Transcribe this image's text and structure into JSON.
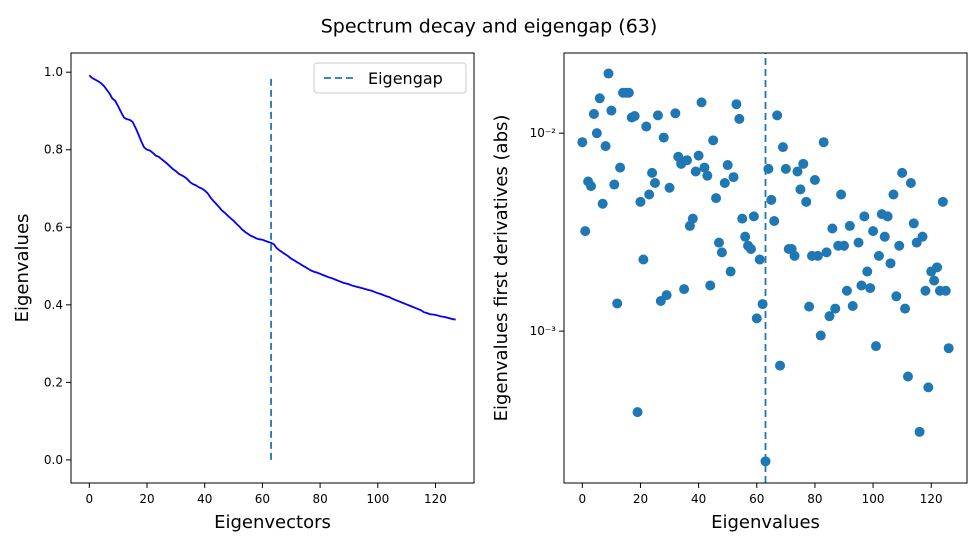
{
  "title": "Spectrum decay and eigengap (63)",
  "chart_data": [
    {
      "type": "line",
      "xlabel": "Eigenvectors",
      "ylabel": "Eigenvalues",
      "color": "#0000ff",
      "values": [
        0.992,
        0.985,
        0.981,
        0.977,
        0.972,
        0.965,
        0.955,
        0.945,
        0.932,
        0.926,
        0.912,
        0.897,
        0.883,
        0.879,
        0.877,
        0.872,
        0.857,
        0.84,
        0.822,
        0.806,
        0.8,
        0.798,
        0.792,
        0.785,
        0.782,
        0.776,
        0.77,
        0.764,
        0.757,
        0.75,
        0.745,
        0.738,
        0.734,
        0.73,
        0.724,
        0.716,
        0.711,
        0.708,
        0.703,
        0.7,
        0.695,
        0.688,
        0.677,
        0.668,
        0.66,
        0.652,
        0.643,
        0.637,
        0.63,
        0.623,
        0.617,
        0.609,
        0.602,
        0.594,
        0.588,
        0.583,
        0.578,
        0.575,
        0.571,
        0.569,
        0.568,
        0.565,
        0.562,
        0.56,
        0.556,
        0.546,
        0.54,
        0.535,
        0.53,
        0.525,
        0.519,
        0.515,
        0.51,
        0.506,
        0.501,
        0.497,
        0.492,
        0.488,
        0.485,
        0.483,
        0.48,
        0.477,
        0.474,
        0.471,
        0.469,
        0.466,
        0.463,
        0.46,
        0.457,
        0.455,
        0.453,
        0.45,
        0.448,
        0.446,
        0.444,
        0.442,
        0.44,
        0.438,
        0.436,
        0.433,
        0.43,
        0.428,
        0.425,
        0.422,
        0.42,
        0.416,
        0.413,
        0.41,
        0.407,
        0.404,
        0.401,
        0.398,
        0.395,
        0.392,
        0.389,
        0.386,
        0.381,
        0.379,
        0.376,
        0.375,
        0.374,
        0.372,
        0.37,
        0.369,
        0.367,
        0.365,
        0.363,
        0.362
      ],
      "vline": {
        "name": "Eigengap",
        "x": 63,
        "ymin": 0,
        "ymax": 0.992,
        "color": "#1f77b4"
      },
      "xlim": [
        -6.35,
        133.35
      ],
      "xticks": [
        0,
        20,
        40,
        60,
        80,
        100,
        120
      ],
      "ylim": [
        -0.0595,
        1.0495
      ],
      "yticks": [
        {
          "value": 0,
          "label": "0.0"
        },
        0.2,
        0.4,
        0.6,
        0.8,
        {
          "value": 1,
          "label": "1.0"
        }
      ],
      "legend": "upper right"
    },
    {
      "type": "scatter",
      "xlabel": "Eigenvalues",
      "ylabel": "Eigenvalues first derivatives (abs)",
      "color": "#1f77b4",
      "log_y": true,
      "x": [
        0,
        1,
        2,
        3,
        4,
        5,
        6,
        7,
        8,
        9,
        10,
        11,
        12,
        13,
        14,
        15,
        16,
        17,
        18,
        19,
        20,
        21,
        22,
        23,
        24,
        25,
        26,
        27,
        28,
        29,
        30,
        32,
        33,
        34,
        35,
        36,
        37,
        38,
        39,
        40,
        41,
        42,
        43,
        44,
        45,
        46,
        47,
        48,
        49,
        50,
        51,
        52,
        53,
        54,
        55,
        56,
        57,
        58,
        59,
        60,
        61,
        62,
        63,
        64,
        65,
        66,
        67,
        68,
        69,
        70,
        71,
        72,
        73,
        74,
        75,
        76,
        77,
        78,
        79,
        80,
        81,
        82,
        83,
        84,
        85,
        86,
        87,
        88,
        89,
        90,
        91,
        92,
        93,
        95,
        96,
        97,
        98,
        99,
        100,
        101,
        102,
        103,
        104,
        105,
        106,
        107,
        108,
        109,
        110,
        111,
        112,
        113,
        114,
        115,
        116,
        117,
        118,
        119,
        120,
        121,
        122,
        123,
        124,
        125,
        126
      ],
      "values": [
        0.009,
        0.0032,
        0.0057,
        0.0054,
        0.0125,
        0.01,
        0.015,
        0.0044,
        0.0086,
        0.02,
        0.013,
        0.0055,
        0.00138,
        0.0067,
        0.016,
        0.016,
        0.016,
        0.012,
        0.0122,
        0.00039,
        0.0045,
        0.0023,
        0.0108,
        0.0049,
        0.0063,
        0.0056,
        0.0123,
        0.00142,
        0.0095,
        0.00152,
        0.0053,
        0.0126,
        0.0076,
        0.007,
        0.00163,
        0.0073,
        0.0034,
        0.0037,
        0.0064,
        0.0077,
        0.0143,
        0.0067,
        0.0061,
        0.0017,
        0.0092,
        0.0047,
        0.0028,
        0.0025,
        0.0056,
        0.0069,
        0.002,
        0.006,
        0.014,
        0.0118,
        0.0037,
        0.003,
        0.0027,
        0.0026,
        0.0038,
        0.00116,
        0.0023,
        0.00137,
        0.00022,
        0.0066,
        0.0046,
        0.0036,
        0.0123,
        0.00067,
        0.0085,
        0.0066,
        0.0026,
        0.0026,
        0.0024,
        0.0064,
        0.0052,
        0.007,
        0.0045,
        0.00133,
        0.0024,
        0.0058,
        0.0024,
        0.00095,
        0.009,
        0.0025,
        0.00119,
        0.0033,
        0.0013,
        0.0027,
        0.0049,
        0.0027,
        0.0016,
        0.0034,
        0.00134,
        0.0028,
        0.0017,
        0.0038,
        0.002,
        0.00165,
        0.0032,
        0.00084,
        0.0024,
        0.0039,
        0.003,
        0.0038,
        0.0022,
        0.0049,
        0.0015,
        0.0027,
        0.0063,
        0.0013,
        0.00059,
        0.0056,
        0.0035,
        0.0028,
        0.00031,
        0.003,
        0.0016,
        0.00052,
        0.002,
        0.0018,
        0.0021,
        0.0016,
        0.0045,
        0.0016,
        0.00082
      ],
      "vline": {
        "x": 63,
        "color": "#1f77b4"
      },
      "xlim": [
        -6.3,
        132.3
      ],
      "xticks": [
        0,
        20,
        40,
        60,
        80,
        100,
        120
      ],
      "ylim": [
        0.000171,
        0.0254
      ],
      "yticks": [
        {
          "value": 0.001,
          "label": "10⁻³"
        },
        {
          "value": 0.01,
          "label": "10⁻²"
        }
      ]
    }
  ]
}
